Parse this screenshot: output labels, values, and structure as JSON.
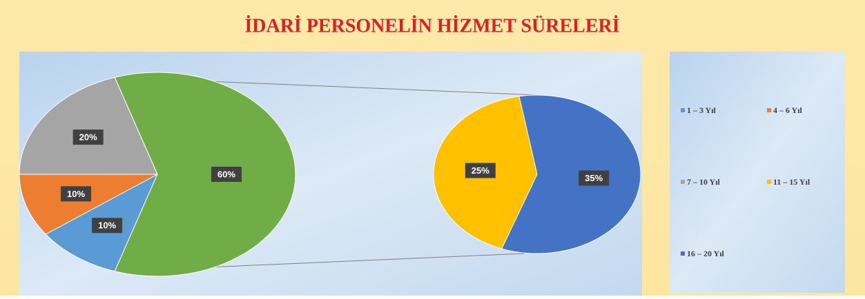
{
  "chart_data": {
    "type": "pie-of-pie",
    "title": "İDARİ PERSONELİN HİZMET SÜRELERİ",
    "categories": [
      "1 – 3 Yıl",
      "4 – 6 Yıl",
      "7 – 10 Yıl",
      "11 – 15 Yıl",
      "16 – 20 Yıl"
    ],
    "values": [
      10,
      10,
      20,
      25,
      35
    ],
    "value_labels": [
      "10%",
      "10%",
      "20%",
      "25%",
      "35%"
    ],
    "colors": [
      "#5b9bd5",
      "#ed7d31",
      "#a5a5a5",
      "#ffc000",
      "#4472c4"
    ],
    "secondary_count": 2,
    "other": {
      "value": 60,
      "label": "60%",
      "color": "#70ad47"
    }
  }
}
